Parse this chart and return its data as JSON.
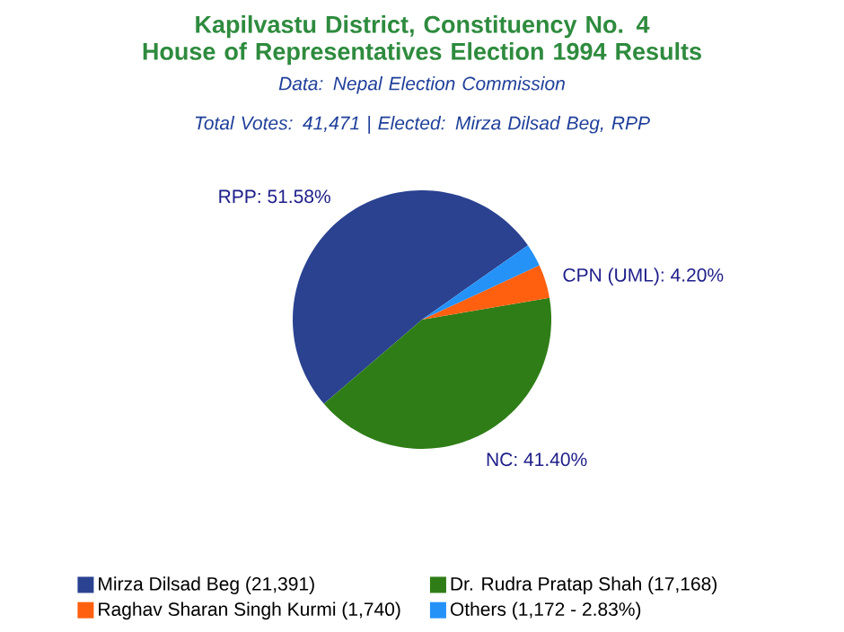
{
  "chart_data": {
    "type": "pie",
    "title": "Kapilvastu District, Constituency No. 4\nHouse of Representatives Election 1994 Results",
    "subtitle": "Data: Nepal Election Commission\nTotal Votes: 41,471 | Elected: Mirza Dilsad Beg, RPP",
    "categories": [
      "Mirza Dilsad Beg (21,391)",
      "Dr. Rudra Pratap Shah (17,168)",
      "Raghav Sharan Singh Kurmi (1,740)",
      "Others (1,172 - 2.83%)"
    ],
    "values": [
      51.58,
      41.4,
      4.2,
      2.83
    ],
    "colors": [
      "#2a4290",
      "#2f7d17",
      "#ff6010",
      "#2592f8"
    ],
    "value_labels": [
      "RPP: 51.58%",
      "NC: 41.40%",
      "CPN (UML): 4.20%",
      null
    ],
    "legend": "bottom"
  }
}
